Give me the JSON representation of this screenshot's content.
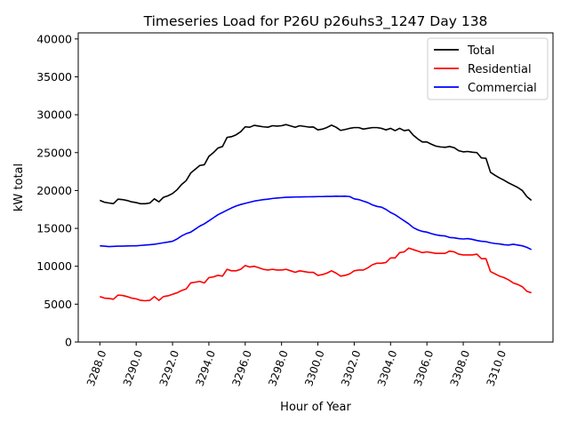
{
  "chart_data": {
    "type": "line",
    "title": "Timeseries Load for P26U p26uhs3_1247  Day 138",
    "xlabel": "Hour of Year",
    "ylabel": "kW total",
    "xlim": [
      3286.81,
      3312.94
    ],
    "ylim": [
      0,
      40800
    ],
    "x_start": 3288.0,
    "x_step": 0.25,
    "xticks": [
      3288,
      3290,
      3292,
      3294,
      3296,
      3298,
      3300,
      3302,
      3304,
      3306,
      3308,
      3310
    ],
    "xtick_labels": [
      "3288.0",
      "3290.0",
      "3292.0",
      "3294.0",
      "3296.0",
      "3298.0",
      "3300.0",
      "3302.0",
      "3304.0",
      "3306.0",
      "3308.0",
      "3310.0"
    ],
    "yticks": [
      0,
      5000,
      10000,
      15000,
      20000,
      25000,
      30000,
      35000,
      40000
    ],
    "ytick_labels": [
      "0",
      "5000",
      "10000",
      "15000",
      "20000",
      "25000",
      "30000",
      "35000",
      "40000"
    ],
    "grid": false,
    "legend_position": "top-right",
    "series": [
      {
        "name": "Total",
        "color": "#000000",
        "values": [
          18700,
          18450,
          18350,
          18270,
          18850,
          18800,
          18680,
          18500,
          18400,
          18250,
          18250,
          18350,
          18900,
          18500,
          19100,
          19300,
          19600,
          20100,
          20800,
          21300,
          22300,
          22800,
          23300,
          23400,
          24500,
          25000,
          25600,
          25800,
          27000,
          27100,
          27350,
          27750,
          28400,
          28350,
          28600,
          28500,
          28400,
          28350,
          28550,
          28500,
          28550,
          28700,
          28520,
          28340,
          28550,
          28460,
          28370,
          28380,
          28000,
          28100,
          28320,
          28620,
          28350,
          27930,
          28050,
          28200,
          28300,
          28300,
          28100,
          28200,
          28300,
          28300,
          28200,
          28000,
          28200,
          27900,
          28200,
          27900,
          28000,
          27300,
          26800,
          26400,
          26400,
          26100,
          25850,
          25750,
          25700,
          25800,
          25650,
          25250,
          25100,
          25150,
          25050,
          25000,
          24300,
          24250,
          22400,
          22000,
          21650,
          21350,
          21000,
          20700,
          20400,
          20000,
          19200,
          18700
        ]
      },
      {
        "name": "Residential",
        "color": "#ff0000",
        "values": [
          6000,
          5800,
          5750,
          5650,
          6200,
          6150,
          6000,
          5800,
          5700,
          5500,
          5450,
          5500,
          6000,
          5500,
          6000,
          6100,
          6300,
          6500,
          6800,
          7000,
          7800,
          7900,
          8000,
          7800,
          8500,
          8600,
          8800,
          8700,
          9600,
          9400,
          9400,
          9600,
          10100,
          9900,
          10000,
          9800,
          9600,
          9500,
          9600,
          9500,
          9500,
          9600,
          9400,
          9200,
          9400,
          9300,
          9200,
          9200,
          8800,
          8900,
          9100,
          9400,
          9100,
          8700,
          8800,
          9000,
          9400,
          9500,
          9500,
          9800,
          10200,
          10400,
          10400,
          10500,
          11100,
          11100,
          11800,
          11900,
          12400,
          12200,
          12000,
          11800,
          11900,
          11800,
          11700,
          11700,
          11700,
          12000,
          11900,
          11600,
          11500,
          11500,
          11500,
          11600,
          11000,
          11000,
          9300,
          9000,
          8700,
          8500,
          8200,
          7800,
          7600,
          7300,
          6700,
          6500
        ]
      },
      {
        "name": "Commercial",
        "color": "#0000ff",
        "values": [
          12700,
          12650,
          12600,
          12620,
          12650,
          12650,
          12680,
          12700,
          12700,
          12750,
          12800,
          12850,
          12900,
          13000,
          13100,
          13200,
          13300,
          13600,
          14000,
          14300,
          14500,
          14900,
          15300,
          15600,
          16000,
          16400,
          16800,
          17100,
          17400,
          17700,
          17950,
          18150,
          18300,
          18450,
          18600,
          18700,
          18800,
          18850,
          18950,
          19000,
          19050,
          19100,
          19120,
          19140,
          19150,
          19160,
          19170,
          19180,
          19200,
          19200,
          19220,
          19220,
          19250,
          19230,
          19250,
          19200,
          18900,
          18800,
          18600,
          18400,
          18100,
          17900,
          17800,
          17500,
          17100,
          16800,
          16400,
          16000,
          15600,
          15100,
          14800,
          14600,
          14500,
          14300,
          14150,
          14050,
          14000,
          13800,
          13750,
          13650,
          13600,
          13650,
          13550,
          13400,
          13300,
          13250,
          13100,
          13000,
          12950,
          12850,
          12800,
          12900,
          12800,
          12700,
          12500,
          12200
        ]
      }
    ]
  }
}
